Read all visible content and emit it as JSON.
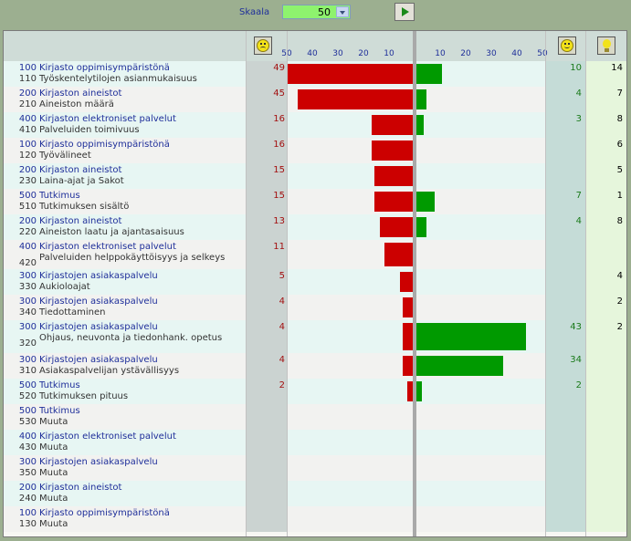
{
  "toolbar": {
    "scale_label": "Skaala",
    "scale_value": "50"
  },
  "chart_data": {
    "type": "bar",
    "title": "",
    "scale_max": 50,
    "negative_axis_ticks": [
      "50",
      "40",
      "30",
      "20",
      "10"
    ],
    "positive_axis_ticks": [
      "10",
      "20",
      "30",
      "40",
      "50"
    ],
    "columns": [
      "negative",
      "positive",
      "ideas"
    ],
    "rows": [
      {
        "cat_code": "100",
        "cat": "Kirjasto oppimisympäristönä",
        "sub_code": "110",
        "sub": "Työskentelytilojen asianmukaisuus",
        "neg": 49,
        "pos": 10,
        "idea": 14
      },
      {
        "cat_code": "200",
        "cat": "Kirjaston aineistot",
        "sub_code": "210",
        "sub": "Aineiston määrä",
        "neg": 45,
        "pos": 4,
        "idea": 7
      },
      {
        "cat_code": "400",
        "cat": "Kirjaston elektroniset palvelut",
        "sub_code": "410",
        "sub": "Palveluiden toimivuus",
        "neg": 16,
        "pos": 3,
        "idea": 8
      },
      {
        "cat_code": "100",
        "cat": "Kirjasto oppimisympäristönä",
        "sub_code": "120",
        "sub": "Työvälineet",
        "neg": 16,
        "pos": null,
        "idea": 6
      },
      {
        "cat_code": "200",
        "cat": "Kirjaston aineistot",
        "sub_code": "230",
        "sub": "Laina-ajat ja Sakot",
        "neg": 15,
        "pos": null,
        "idea": 5
      },
      {
        "cat_code": "500",
        "cat": "Tutkimus",
        "sub_code": "510",
        "sub": "Tutkimuksen sisältö",
        "neg": 15,
        "pos": 7,
        "idea": 1
      },
      {
        "cat_code": "200",
        "cat": "Kirjaston aineistot",
        "sub_code": "220",
        "sub": "Aineiston laatu ja ajantasaisuus",
        "neg": 13,
        "pos": 4,
        "idea": 8
      },
      {
        "cat_code": "400",
        "cat": "Kirjaston elektroniset palvelut",
        "sub_code": "420",
        "sub": "Palveluiden helppokäyttöisyys ja selkeys",
        "neg": 11,
        "pos": null,
        "idea": null
      },
      {
        "cat_code": "300",
        "cat": "Kirjastojen asiakaspalvelu",
        "sub_code": "330",
        "sub": "Aukioloajat",
        "neg": 5,
        "pos": null,
        "idea": 4
      },
      {
        "cat_code": "300",
        "cat": "Kirjastojen asiakaspalvelu",
        "sub_code": "340",
        "sub": "Tiedottaminen",
        "neg": 4,
        "pos": null,
        "idea": 2
      },
      {
        "cat_code": "300",
        "cat": "Kirjastojen asiakaspalvelu",
        "sub_code": "320",
        "sub": "Ohjaus, neuvonta ja tiedonhank. opetus",
        "neg": 4,
        "pos": 43,
        "idea": 2
      },
      {
        "cat_code": "300",
        "cat": "Kirjastojen asiakaspalvelu",
        "sub_code": "310",
        "sub": "Asiakaspalvelijan ystävällisyys",
        "neg": 4,
        "pos": 34,
        "idea": null
      },
      {
        "cat_code": "500",
        "cat": "Tutkimus",
        "sub_code": "520",
        "sub": "Tutkimuksen pituus",
        "neg": 2,
        "pos": 2,
        "idea": null
      },
      {
        "cat_code": "500",
        "cat": "Tutkimus",
        "sub_code": "530",
        "sub": "Muuta",
        "neg": null,
        "pos": null,
        "idea": null
      },
      {
        "cat_code": "400",
        "cat": "Kirjaston elektroniset palvelut",
        "sub_code": "430",
        "sub": "Muuta",
        "neg": null,
        "pos": null,
        "idea": null
      },
      {
        "cat_code": "300",
        "cat": "Kirjastojen asiakaspalvelu",
        "sub_code": "350",
        "sub": "Muuta",
        "neg": null,
        "pos": null,
        "idea": null
      },
      {
        "cat_code": "200",
        "cat": "Kirjaston aineistot",
        "sub_code": "240",
        "sub": "Muuta",
        "neg": null,
        "pos": null,
        "idea": null
      },
      {
        "cat_code": "100",
        "cat": "Kirjasto oppimisympäristönä",
        "sub_code": "130",
        "sub": "Muuta",
        "neg": null,
        "pos": null,
        "idea": null
      }
    ]
  },
  "colors": {
    "negative_bar": "#cc0000",
    "positive_bar": "#009a00",
    "category_text": "#1f2f9a"
  },
  "icons": {
    "negative_header": "sad-face-icon",
    "positive_header": "happy-face-icon",
    "ideas_header": "lightbulb-icon"
  }
}
